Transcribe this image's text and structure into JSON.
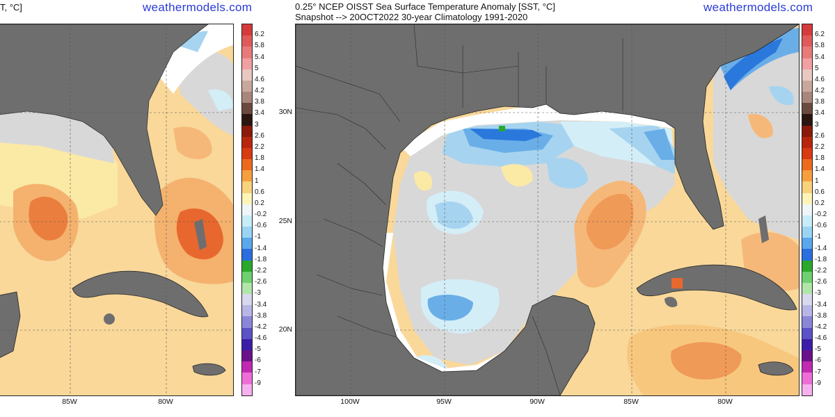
{
  "left_panel": {
    "title_fragment": "T, °C]",
    "brand": "weathermodels.com",
    "x_labels": [
      "85W",
      "80W"
    ]
  },
  "right_panel": {
    "title_line1": "0.25° NCEP OISST Sea Surface Temperature Anomaly [SST, °C]",
    "title_line2": "Snapshot --> 20OCT2022   30-year Climatology 1991-2020",
    "brand": "weathermodels.com",
    "x_labels": [
      "100W",
      "95W",
      "90W",
      "85W",
      "80W"
    ],
    "y_labels": [
      "30N",
      "25N",
      "20N"
    ]
  },
  "colorbar": {
    "labels": [
      "6.2",
      "5.8",
      "5.4",
      "5",
      "4.6",
      "4.2",
      "3.8",
      "3.4",
      "3",
      "2.6",
      "2.2",
      "1.8",
      "1.4",
      "1",
      "0.6",
      "0.2",
      "-0.2",
      "-0.6",
      "-1",
      "-1.4",
      "-1.8",
      "-2.2",
      "-2.6",
      "-3",
      "-3.4",
      "-3.8",
      "-4.2",
      "-4.6",
      "-5",
      "-6",
      "-7",
      "-9"
    ],
    "colors": [
      "#d63b3b",
      "#e05a5a",
      "#e87a7a",
      "#f0a0a0",
      "#e7c9c2",
      "#c9a89c",
      "#a8877a",
      "#6b4a3e",
      "#2a1510",
      "#8a1a0a",
      "#b8260e",
      "#d83a12",
      "#ec6a1e",
      "#f5a03c",
      "#f9d27c",
      "#fdf4b8",
      "#eef6f8",
      "#c8ecf8",
      "#9ad4f4",
      "#5aa8ec",
      "#2a6ee0",
      "#2aa82a",
      "#6fd06f",
      "#b0e6a8",
      "#d8d8ee",
      "#b8b6e6",
      "#8a86d8",
      "#5a52c6",
      "#3a1ea8",
      "#6a128a",
      "#c02ab0",
      "#ee6ed8",
      "#f6b0ee"
    ]
  },
  "map_colors": {
    "land": "#6e6e6e",
    "no_data": "#ffffff",
    "neutral": "#d8d8d8",
    "warm_light": "#fbe9a6",
    "warm_mid": "#f8c77e",
    "warm_strong": "#f09a58",
    "warm_hot": "#e46a30",
    "cool_light": "#d4eef8",
    "cool_mid": "#a6d4f0",
    "cool_strong": "#6aaee8",
    "cool_deep": "#2a78dc"
  }
}
